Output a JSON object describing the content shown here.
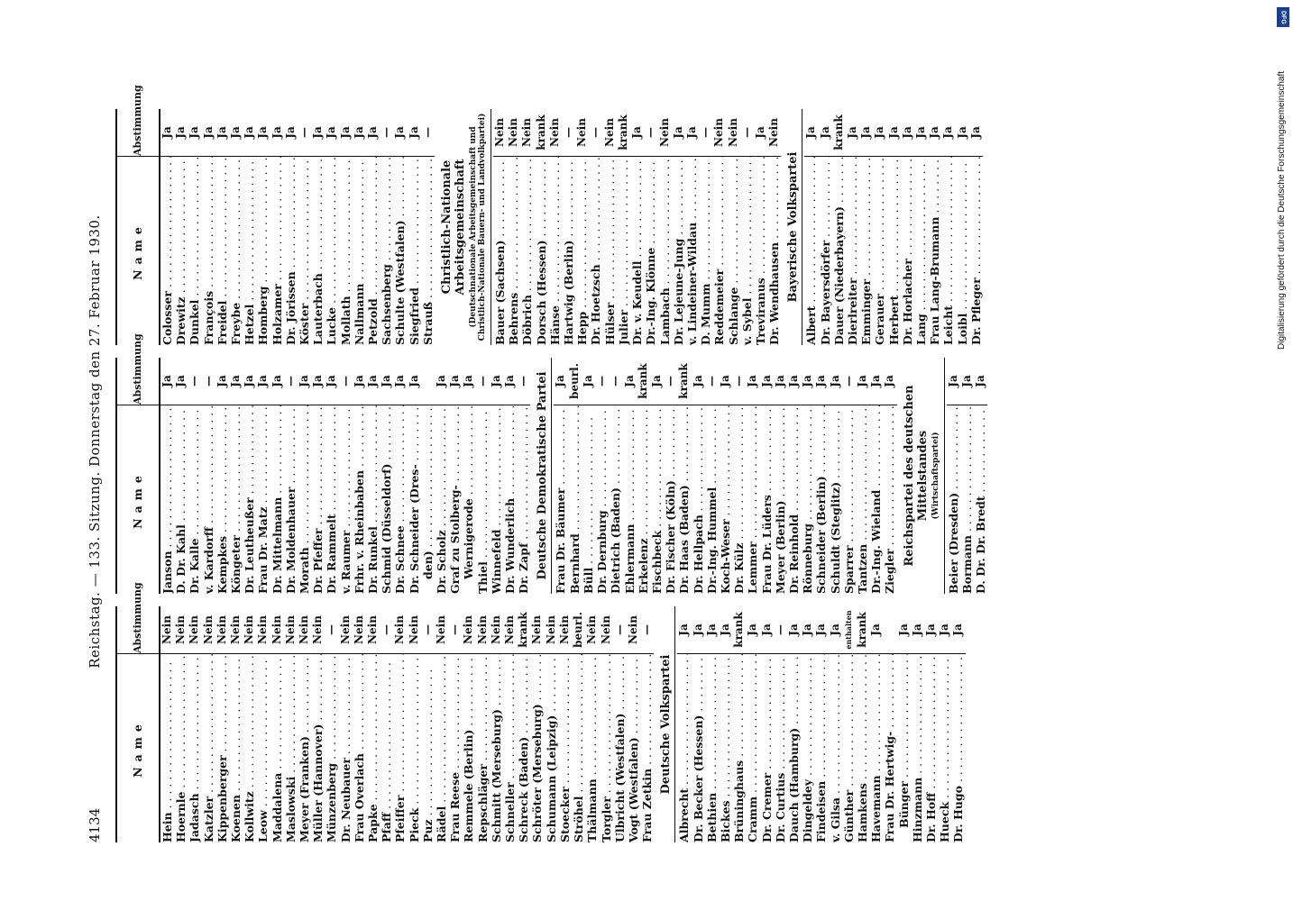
{
  "header": {
    "page_number": "4134",
    "title": "Reichstag. — 133. Sitzung. Donnerstag den 27. Februar 1930."
  },
  "columns": {
    "name_header": "Name",
    "vote_header": "Abstimmung"
  },
  "sidebar": {
    "dfg_text": "Digitalisierung gefördert durch die Deutsche Forschungsgemeinschaft",
    "dfg_logo": "DFG"
  },
  "col1": [
    {
      "n": "Hein",
      "v": "Nein"
    },
    {
      "n": "Hoernle",
      "v": "Nein"
    },
    {
      "n": "Jadasch",
      "v": "Nein"
    },
    {
      "n": "Katzler",
      "v": "Nein"
    },
    {
      "n": "Kippenberger",
      "v": "Nein"
    },
    {
      "n": "Koenen",
      "v": "Nein"
    },
    {
      "n": "Kollwitz",
      "v": "Nein"
    },
    {
      "n": "Leow",
      "v": "Nein"
    },
    {
      "n": "Maddalena",
      "v": "Nein"
    },
    {
      "n": "Maslowski",
      "v": "Nein"
    },
    {
      "n": "Meyer (Franken)",
      "v": "Nein"
    },
    {
      "n": "Müller (Hannover)",
      "v": "Nein"
    },
    {
      "n": "Münzenberg",
      "v": "—"
    },
    {
      "n": "Dr. Neubauer",
      "v": "Nein"
    },
    {
      "n": "Frau Overlach",
      "v": "Nein"
    },
    {
      "n": "Papke",
      "v": "Nein"
    },
    {
      "n": "Pfaff",
      "v": "—"
    },
    {
      "n": "Pfeiffer",
      "v": "Nein"
    },
    {
      "n": "Pieck",
      "v": "Nein"
    },
    {
      "n": "Puz",
      "v": "—"
    },
    {
      "n": "Rädel",
      "v": "Nein"
    },
    {
      "n": "Frau Reese",
      "v": "—"
    },
    {
      "n": "Remmele (Berlin)",
      "v": "Nein"
    },
    {
      "n": "Repschläger",
      "v": "Nein"
    },
    {
      "n": "Schmitt (Merseburg)",
      "v": "Nein"
    },
    {
      "n": "Schneller",
      "v": "Nein"
    },
    {
      "n": "Schreck (Baden)",
      "v": "krank"
    },
    {
      "n": "Schröter (Merseburg)",
      "v": "Nein"
    },
    {
      "n": "Schumann (Leipzig)",
      "v": "Nein"
    },
    {
      "n": "Stoecker",
      "v": "Nein"
    },
    {
      "n": "Ströhel",
      "v": "beurl."
    },
    {
      "n": "Thälmann",
      "v": "Nein"
    },
    {
      "n": "Torgler",
      "v": "Nein"
    },
    {
      "n": "Ulbricht (Westfalen)",
      "v": "—"
    },
    {
      "n": "Vogt (Westfalen)",
      "v": "Nein"
    },
    {
      "n": "Frau Zetkin",
      "v": "—"
    }
  ],
  "col1_party": "Deutsche Volkspartei",
  "col1b": [
    {
      "n": "Albrecht",
      "v": "Ja"
    },
    {
      "n": "Dr. Becker (Hessen)",
      "v": "Ja"
    },
    {
      "n": "Bethien",
      "v": "Ja"
    },
    {
      "n": "Bickes",
      "v": "Ja"
    },
    {
      "n": "Brüninghaus",
      "v": "krank"
    },
    {
      "n": "Cramm",
      "v": "Ja"
    },
    {
      "n": "Dr. Cremer",
      "v": "Ja"
    },
    {
      "n": "Dr. Curtius",
      "v": "—"
    },
    {
      "n": "Dauch (Hamburg)",
      "v": "Ja"
    },
    {
      "n": "Dingeldey",
      "v": "Ja"
    },
    {
      "n": "Findeisen",
      "v": "Ja"
    },
    {
      "n": "v. Gilsa",
      "v": "Ja"
    },
    {
      "n": "Günther",
      "v": "enthalten"
    },
    {
      "n": "Hamkens",
      "v": "krank"
    },
    {
      "n": "Havemann",
      "v": "Ja"
    },
    {
      "n": "Frau Dr. Hertwig-",
      "v": ""
    },
    {
      "n": "Bünger",
      "v": "Ja",
      "c": true
    },
    {
      "n": "Hinzmann",
      "v": "Ja"
    },
    {
      "n": "Dr. Hoff",
      "v": "Ja"
    },
    {
      "n": "Hueck",
      "v": "Ja"
    },
    {
      "n": "Dr. Hugo",
      "v": "Ja"
    }
  ],
  "col2": [
    {
      "n": "Janson",
      "v": "Ja"
    },
    {
      "n": "D. Dr. Kahl",
      "v": "Ja"
    },
    {
      "n": "Dr. Kalle",
      "v": "—"
    },
    {
      "n": "v. Kardorff",
      "v": "—"
    },
    {
      "n": "Kempkes",
      "v": "Ja"
    },
    {
      "n": "Köngeter",
      "v": "Ja"
    },
    {
      "n": "Dr. Leutheußer",
      "v": "Ja"
    },
    {
      "n": "Frau Dr. Matz",
      "v": "Ja"
    },
    {
      "n": "Dr. Mittelmann",
      "v": "Ja"
    },
    {
      "n": "Dr. Moldenhauer",
      "v": "—"
    },
    {
      "n": "Morath",
      "v": "Ja"
    },
    {
      "n": "Dr. Pfeffer",
      "v": "Ja"
    },
    {
      "n": "Dr. Rammelt",
      "v": "Ja"
    },
    {
      "n": "v. Raumer",
      "v": "—"
    },
    {
      "n": "Frhr. v. Rheinbaben",
      "v": "Ja"
    },
    {
      "n": "Dr. Runkel",
      "v": "Ja"
    },
    {
      "n": "Schmid (Düsseldorf)",
      "v": "Ja"
    },
    {
      "n": "Dr. Schnee",
      "v": "Ja"
    },
    {
      "n": "Dr. Schneider (Dres-",
      "v": "Ja"
    },
    {
      "n": "den)",
      "v": "",
      "c": true
    },
    {
      "n": "Dr. Scholz",
      "v": "Ja"
    },
    {
      "n": "Graf zu Stolberg-",
      "v": "Ja"
    },
    {
      "n": "Wernigerode",
      "v": "Ja",
      "c": true
    },
    {
      "n": "Thiel",
      "v": "—"
    },
    {
      "n": "Winnefeld",
      "v": "Ja"
    },
    {
      "n": "Dr. Wunderlich",
      "v": "Ja"
    },
    {
      "n": "Dr. Zapf",
      "v": "—"
    }
  ],
  "col2_party": "Deutsche Demokratische Partei",
  "col2b": [
    {
      "n": "Frau Dr. Bäumer",
      "v": "Ja"
    },
    {
      "n": "Bernhard",
      "v": "beurl."
    },
    {
      "n": "Büll",
      "v": "Ja"
    },
    {
      "n": "Dr. Dernburg",
      "v": "—"
    },
    {
      "n": "Dietrich (Baden)",
      "v": "—"
    },
    {
      "n": "Ehlermann",
      "v": "Ja"
    },
    {
      "n": "Erkelenz",
      "v": "krank"
    },
    {
      "n": "Fischbeck",
      "v": "Ja"
    },
    {
      "n": "Dr. Fischer (Köln)",
      "v": "—"
    },
    {
      "n": "Dr. Haas (Baden)",
      "v": "krank"
    },
    {
      "n": "Dr. Hellpach",
      "v": "Ja"
    },
    {
      "n": "Dr.-Ing. Hummel",
      "v": "—"
    },
    {
      "n": "Koch-Weser",
      "v": "Ja"
    },
    {
      "n": "Dr. Külz",
      "v": "—"
    },
    {
      "n": "Lemmer",
      "v": "Ja"
    },
    {
      "n": "Frau Dr. Lüders",
      "v": "Ja"
    },
    {
      "n": "Meyer (Berlin)",
      "v": "Ja"
    },
    {
      "n": "Dr. Reinhold",
      "v": "Ja"
    },
    {
      "n": "Rönneburg",
      "v": "Ja"
    },
    {
      "n": "Schneider (Berlin)",
      "v": "Ja"
    },
    {
      "n": "Schuldt (Steglitz)",
      "v": "Ja"
    },
    {
      "n": "Sparrer",
      "v": "—"
    },
    {
      "n": "Tantzen",
      "v": "Ja"
    },
    {
      "n": "Dr.-Ing. Wieland",
      "v": "Ja"
    },
    {
      "n": "Ziegler",
      "v": "Ja"
    }
  ],
  "col2_party2": "Reichspartei des deutschen Mittelstandes",
  "col2_party2_sub": "(Wirtschaftspartei)",
  "col2c": [
    {
      "n": "Beier (Dresden)",
      "v": "Ja"
    },
    {
      "n": "Bormann",
      "v": "Ja"
    },
    {
      "n": "D. Dr. Dr. Bredt",
      "v": "Ja"
    }
  ],
  "col3": [
    {
      "n": "Colosser",
      "v": "Ja"
    },
    {
      "n": "Drewitz",
      "v": "Ja"
    },
    {
      "n": "Dunkel",
      "v": "Ja"
    },
    {
      "n": "François",
      "v": "Ja"
    },
    {
      "n": "Freidel",
      "v": "Ja"
    },
    {
      "n": "Freybe",
      "v": "Ja"
    },
    {
      "n": "Hetzel",
      "v": "Ja"
    },
    {
      "n": "Homberg",
      "v": "Ja"
    },
    {
      "n": "Holzamer",
      "v": "Ja"
    },
    {
      "n": "Dr. Jörissen",
      "v": "Ja"
    },
    {
      "n": "Köster",
      "v": "—"
    },
    {
      "n": "Lauterbach",
      "v": "Ja"
    },
    {
      "n": "Lucke",
      "v": "Ja"
    },
    {
      "n": "Mollath",
      "v": "Ja"
    },
    {
      "n": "Nallmann",
      "v": "Ja"
    },
    {
      "n": "Petzold",
      "v": "Ja"
    },
    {
      "n": "Sachsenberg",
      "v": "—"
    },
    {
      "n": "Schulte (Westfalen)",
      "v": "Ja"
    },
    {
      "n": "Siegfried",
      "v": "Ja"
    },
    {
      "n": "Strauß",
      "v": "—"
    }
  ],
  "col3_party": "Christlich-Nationale Arbeitsgemeinschaft",
  "col3_party_sub": "(Deutschnationale Arbeitsgemeinschaft und Christlich-Nationale Bauern- und Landvolkpartei)",
  "col3b": [
    {
      "n": "Bauer (Sachsen)",
      "v": "Nein"
    },
    {
      "n": "Behrens",
      "v": "Nein"
    },
    {
      "n": "Döbrich",
      "v": "Nein"
    },
    {
      "n": "Dorsch (Hessen)",
      "v": "krank"
    },
    {
      "n": "Hänse",
      "v": "Nein"
    },
    {
      "n": "Hartwig (Berlin)",
      "v": "—"
    },
    {
      "n": "Hepp",
      "v": "Nein"
    },
    {
      "n": "Dr. Hoetzsch",
      "v": "—"
    },
    {
      "n": "Hülser",
      "v": "Nein"
    },
    {
      "n": "Julier",
      "v": "krank"
    },
    {
      "n": "Dr. v. Keudell",
      "v": "Ja"
    },
    {
      "n": "Dr.-Ing. Klönne",
      "v": "—"
    },
    {
      "n": "Lambach",
      "v": "Nein"
    },
    {
      "n": "Dr. Lejeune-Jung",
      "v": "Ja"
    },
    {
      "n": "v. Lindeiner-Wildau",
      "v": "Ja"
    },
    {
      "n": "D. Mumm",
      "v": "—"
    },
    {
      "n": "Reddemeier",
      "v": "Nein"
    },
    {
      "n": "Schlange",
      "v": "Nein"
    },
    {
      "n": "v. Sybel",
      "v": "—"
    },
    {
      "n": "Treviranus",
      "v": "Ja"
    },
    {
      "n": "Dr. Wendhausen",
      "v": "Nein"
    }
  ],
  "col3_party2": "Bayerische Volkspartei",
  "col3c": [
    {
      "n": "Albert",
      "v": "Ja"
    },
    {
      "n": "Dr. Bayersdörfer",
      "v": "Ja"
    },
    {
      "n": "Dauer (Niederbayern)",
      "v": "krank"
    },
    {
      "n": "Dierlreiter",
      "v": "Ja"
    },
    {
      "n": "Emminger",
      "v": "Ja"
    },
    {
      "n": "Gerauer",
      "v": "Ja"
    },
    {
      "n": "Herbert",
      "v": "Ja"
    },
    {
      "n": "Dr. Horlacher",
      "v": "Ja"
    },
    {
      "n": "Lang",
      "v": "Ja"
    },
    {
      "n": "Frau Lang-Brumann",
      "v": "Ja"
    },
    {
      "n": "Leicht",
      "v": "Ja"
    },
    {
      "n": "Loibl",
      "v": "Ja"
    },
    {
      "n": "Dr. Pfleger",
      "v": "Ja"
    }
  ]
}
